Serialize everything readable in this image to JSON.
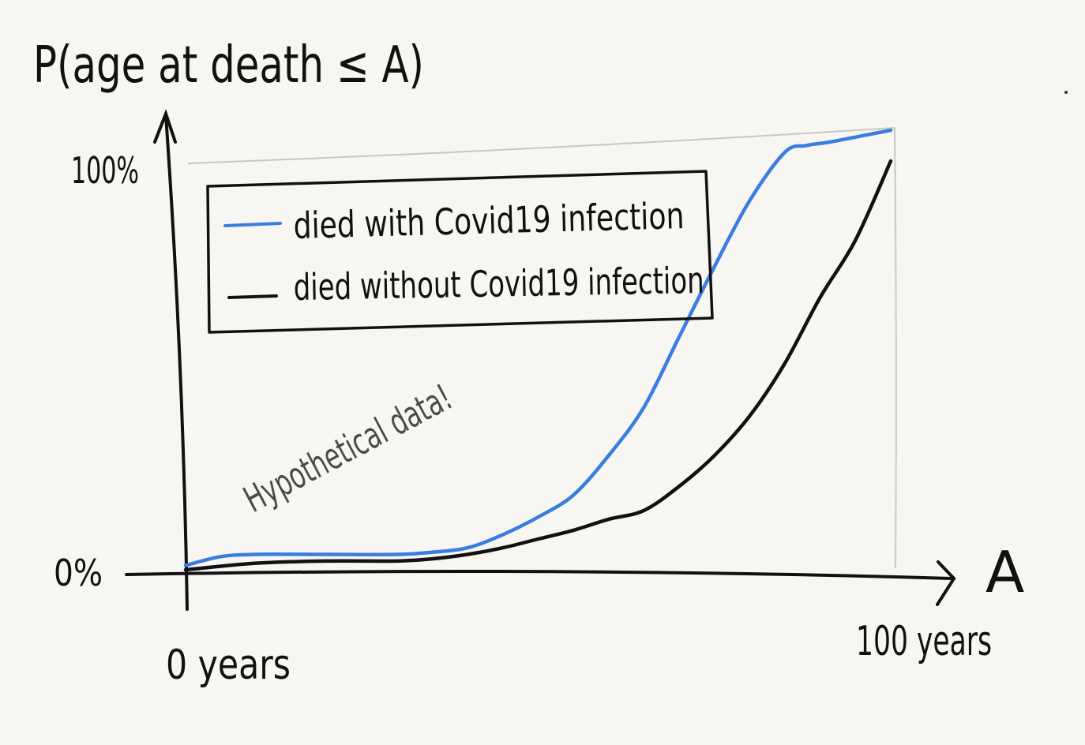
{
  "chart_data": {
    "type": "line",
    "ylabel": "P(age at death ≤ A)",
    "xlabel": "A",
    "y_ticks": [
      "100%",
      "0%"
    ],
    "x_ticks": [
      "0 years",
      "100 years"
    ],
    "xlim": [
      0,
      100
    ],
    "ylim": [
      0,
      100
    ],
    "grid": false,
    "legend_position": "top-left",
    "annotation": "Hypothetical data!",
    "series": [
      {
        "name": "died with Covid19 infection",
        "color": "#3a7de0",
        "x": [
          0,
          5,
          10,
          20,
          30,
          35,
          40,
          45,
          50,
          55,
          60,
          65,
          70,
          75,
          80,
          85,
          88,
          90,
          92,
          100
        ],
        "y": [
          1,
          3,
          3.5,
          3.5,
          3.5,
          4,
          5,
          8,
          12,
          17,
          26,
          37,
          53,
          69,
          84,
          95,
          96.5,
          97,
          97.5,
          100
        ]
      },
      {
        "name": "died without Covid19 infection",
        "color": "#111111",
        "x": [
          0,
          10,
          20,
          30,
          35,
          40,
          45,
          50,
          55,
          60,
          65,
          70,
          75,
          80,
          85,
          90,
          95,
          100
        ],
        "y": [
          0,
          1.5,
          2,
          2,
          2.5,
          3.5,
          5,
          7,
          9,
          11.5,
          13.5,
          19,
          26,
          35,
          47,
          62,
          75,
          93
        ]
      }
    ]
  }
}
